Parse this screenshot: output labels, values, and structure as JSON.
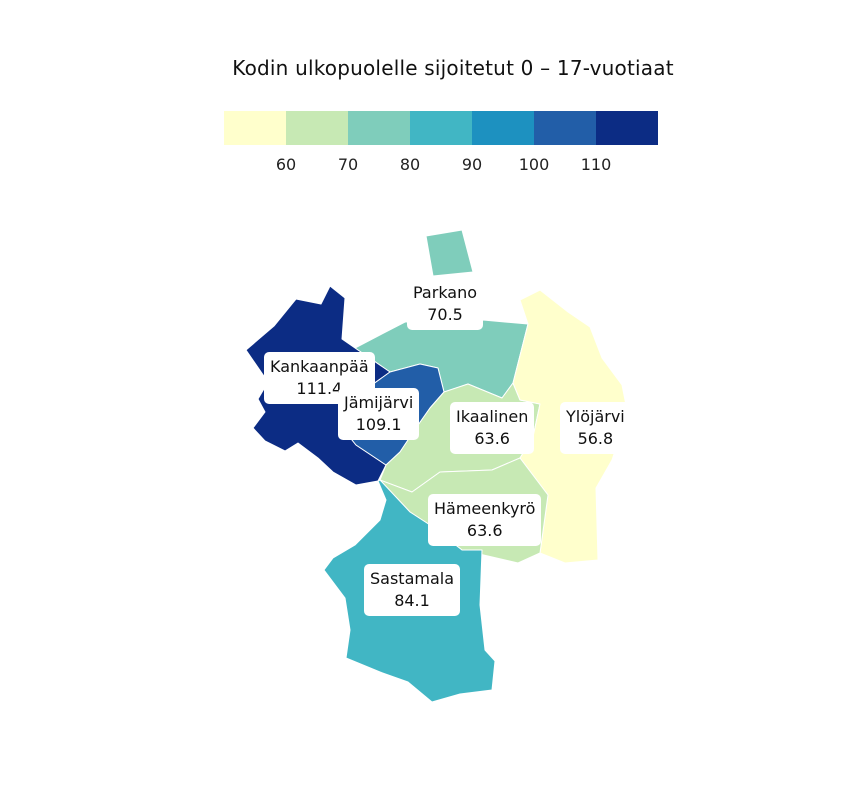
{
  "title": "Kodin ulkopuolelle sijoitetut 0 – 17-vuotiaat",
  "legend": {
    "colors": [
      "#ffffcc",
      "#c7e9b4",
      "#7fcdbb",
      "#41b6c4",
      "#1d91c0",
      "#225ea8",
      "#0c2c84"
    ],
    "ticks": [
      "60",
      "70",
      "80",
      "90",
      "100",
      "110"
    ]
  },
  "regions": [
    {
      "name": "Parkano",
      "value": "70.5",
      "color": "#7fcdbb"
    },
    {
      "name": "Kankaanpää",
      "value": "111.4",
      "color": "#0c2c84"
    },
    {
      "name": "Jämijärvi",
      "value": "109.1",
      "color": "#225ea8"
    },
    {
      "name": "Ikaalinen",
      "value": "63.6",
      "color": "#c7e9b4"
    },
    {
      "name": "Ylöjärvi",
      "value": "56.8",
      "color": "#ffffcc"
    },
    {
      "name": "Hämeenkyrö",
      "value": "63.6",
      "color": "#c7e9b4"
    },
    {
      "name": "Sastamala",
      "value": "84.1",
      "color": "#41b6c4"
    }
  ]
}
